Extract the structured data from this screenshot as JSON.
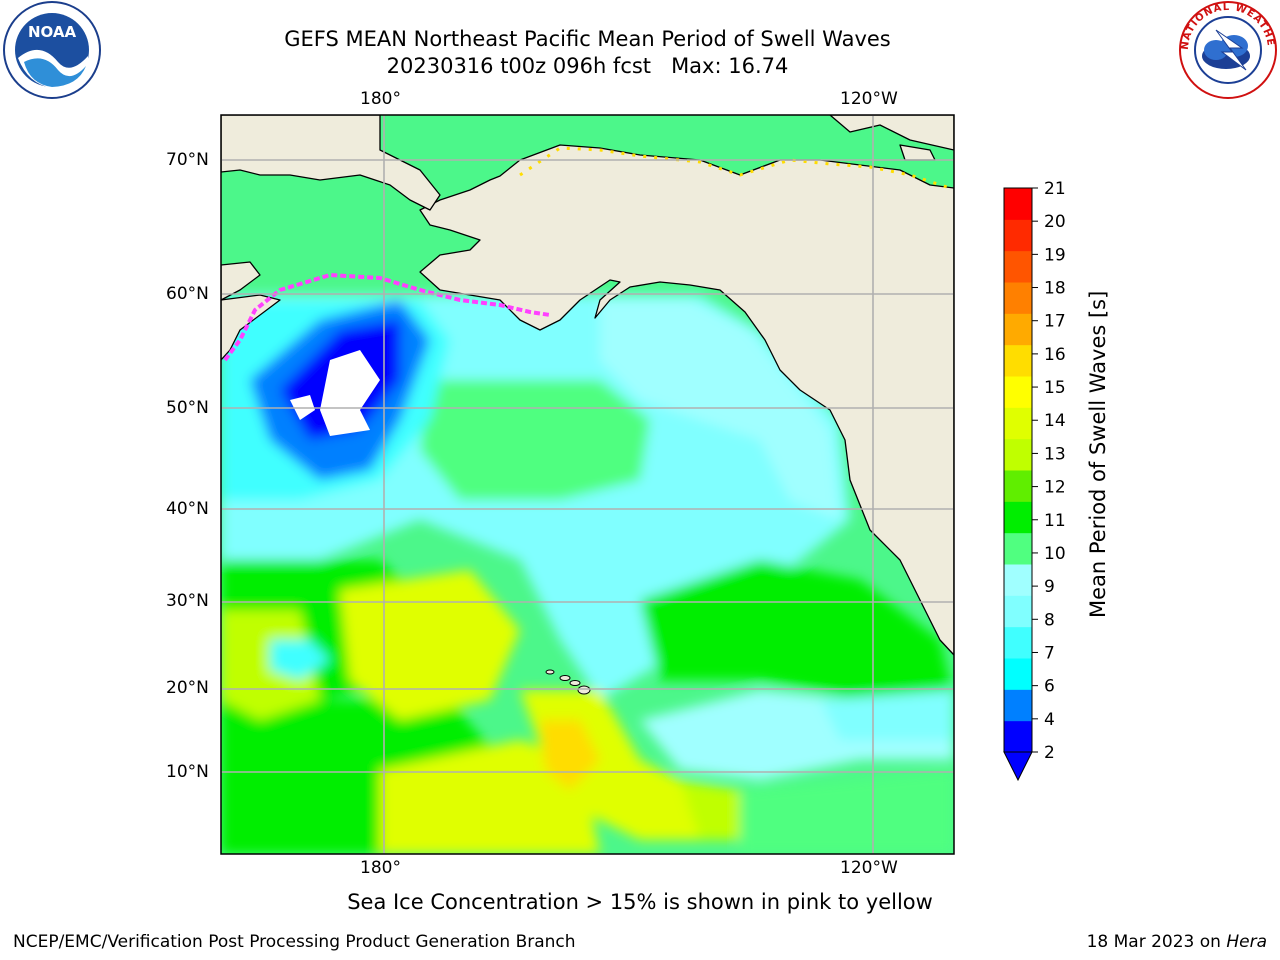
{
  "title": {
    "line1": "GEFS MEAN Northeast Pacific Mean Period of Swell Waves",
    "line2": "20230316 t00z 096h fcst   Max: 16.74"
  },
  "map": {
    "lon_labels_top": [
      "180°",
      "120°W"
    ],
    "lon_labels_bottom": [
      "180°",
      "120°W"
    ],
    "lat_labels": [
      "70°N",
      "60°N",
      "50°N",
      "40°N",
      "30°N",
      "20°N",
      "10°N"
    ],
    "land_color": "#efecdc",
    "ocean_blank_color": "#ffffff"
  },
  "colorbar": {
    "label": "Mean Period of Swell Waves [s]",
    "ticks": [
      "2",
      "4",
      "6",
      "7",
      "8",
      "9",
      "10",
      "11",
      "12",
      "13",
      "14",
      "15",
      "16",
      "17",
      "18",
      "19",
      "20",
      "21"
    ],
    "colors": [
      "#0000ff",
      "#0080ff",
      "#00ffff",
      "#40ffff",
      "#80ffff",
      "#a0ffff",
      "#50ff80",
      "#00ee00",
      "#60ee00",
      "#c0ff00",
      "#e0ff00",
      "#ffff00",
      "#ffdd00",
      "#ffaa00",
      "#ff8000",
      "#ff5500",
      "#ff2a00",
      "#ff0000"
    ]
  },
  "footnote": "Sea Ice Concentration > 15% is shown in pink to yellow",
  "credit_left": "NCEP/EMC/Verification Post Processing Product Generation Branch",
  "credit_right_date": "18 Mar 2023 on ",
  "credit_right_host": "Hera",
  "logos": {
    "left": "NOAA",
    "right": "NATIONAL WEATHER SERVICE"
  }
}
